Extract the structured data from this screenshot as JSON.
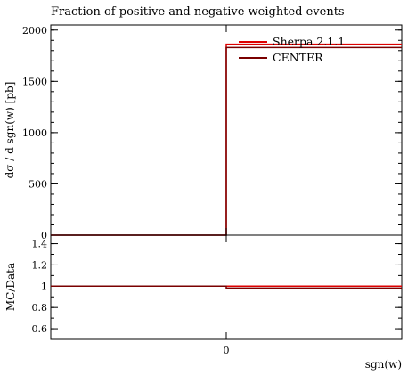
{
  "chart_data": {
    "type": "line",
    "title": "Fraction of positive and negative weighted events",
    "main": {
      "ylabel": "dσ / d sgn(w) [pb]",
      "ylim": [
        0,
        2050
      ],
      "yticks": [
        0,
        500,
        1000,
        1500,
        2000
      ],
      "ytick_labels": [
        "0",
        "500",
        "1000",
        "1500",
        "2000"
      ]
    },
    "ratio": {
      "ylabel": "MC/Data",
      "ylim": [
        0.5,
        1.48
      ],
      "yticks": [
        0.6,
        0.8,
        1.0,
        1.2,
        1.4
      ],
      "ytick_labels": [
        "0.6",
        "0.8",
        "1",
        "1.2",
        "1.4"
      ]
    },
    "xlabel": "sgn(w)",
    "xlim": [
      -1,
      1
    ],
    "xticks": [
      0
    ],
    "xtick_labels": [
      "0"
    ],
    "series": [
      {
        "name": "Sherpa 2.1.1",
        "color": "#dd0000",
        "bins": [
          [
            -1,
            0,
            0
          ],
          [
            0,
            1,
            1862
          ]
        ],
        "ratio_bins": [
          [
            -1,
            0,
            1.0
          ],
          [
            0,
            1,
            1.0
          ]
        ]
      },
      {
        "name": "CENTER",
        "color": "#7a0000",
        "bins": [
          [
            -1,
            0,
            0
          ],
          [
            0,
            1,
            1830
          ]
        ],
        "ratio_bins": [
          [
            -1,
            0,
            1.0
          ],
          [
            0,
            1,
            0.983
          ]
        ]
      }
    ],
    "legend_position": "top-right"
  }
}
